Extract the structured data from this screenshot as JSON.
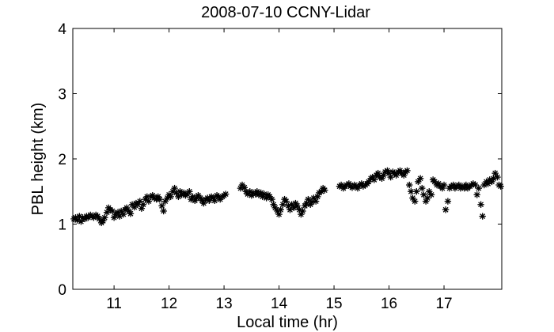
{
  "chart_data": {
    "type": "scatter",
    "title": "2008-07-10 CCNY-Lidar",
    "xlabel": "Local time (hr)",
    "ylabel": "PBL height (km)",
    "xlim": [
      10.25,
      18.05
    ],
    "ylim": [
      0,
      4
    ],
    "xticks": [
      11,
      12,
      13,
      14,
      15,
      16,
      17
    ],
    "yticks": [
      0,
      1,
      2,
      3,
      4
    ],
    "grid": false,
    "marker": "asterisk",
    "color": "#000000",
    "series": [
      {
        "points": [
          [
            10.27,
            1.08
          ],
          [
            10.3,
            1.1
          ],
          [
            10.33,
            1.06
          ],
          [
            10.37,
            1.12
          ],
          [
            10.4,
            1.04
          ],
          [
            10.43,
            1.1
          ],
          [
            10.47,
            1.08
          ],
          [
            10.5,
            1.12
          ],
          [
            10.53,
            1.1
          ],
          [
            10.57,
            1.14
          ],
          [
            10.6,
            1.12
          ],
          [
            10.63,
            1.1
          ],
          [
            10.67,
            1.14
          ],
          [
            10.7,
            1.12
          ],
          [
            10.73,
            1.08
          ],
          [
            10.77,
            1.02
          ],
          [
            10.8,
            1.05
          ],
          [
            10.83,
            1.1
          ],
          [
            10.87,
            1.18
          ],
          [
            10.9,
            1.25
          ],
          [
            10.93,
            1.22
          ],
          [
            10.97,
            1.2
          ],
          [
            11.0,
            1.1
          ],
          [
            11.03,
            1.15
          ],
          [
            11.07,
            1.18
          ],
          [
            11.1,
            1.12
          ],
          [
            11.13,
            1.2
          ],
          [
            11.17,
            1.15
          ],
          [
            11.2,
            1.22
          ],
          [
            11.23,
            1.25
          ],
          [
            11.27,
            1.2
          ],
          [
            11.3,
            1.16
          ],
          [
            11.33,
            1.3
          ],
          [
            11.37,
            1.26
          ],
          [
            11.4,
            1.32
          ],
          [
            11.43,
            1.3
          ],
          [
            11.47,
            1.35
          ],
          [
            11.5,
            1.24
          ],
          [
            11.53,
            1.3
          ],
          [
            11.57,
            1.38
          ],
          [
            11.6,
            1.42
          ],
          [
            11.63,
            1.35
          ],
          [
            11.67,
            1.42
          ],
          [
            11.7,
            1.44
          ],
          [
            11.73,
            1.4
          ],
          [
            11.77,
            1.38
          ],
          [
            11.8,
            1.42
          ],
          [
            11.83,
            1.38
          ],
          [
            11.87,
            1.28
          ],
          [
            11.9,
            1.2
          ],
          [
            11.93,
            1.35
          ],
          [
            11.97,
            1.4
          ],
          [
            12.0,
            1.45
          ],
          [
            12.03,
            1.42
          ],
          [
            12.07,
            1.5
          ],
          [
            12.1,
            1.55
          ],
          [
            12.13,
            1.48
          ],
          [
            12.17,
            1.42
          ],
          [
            12.2,
            1.5
          ],
          [
            12.23,
            1.45
          ],
          [
            12.27,
            1.48
          ],
          [
            12.3,
            1.44
          ],
          [
            12.33,
            1.46
          ],
          [
            12.37,
            1.5
          ],
          [
            12.4,
            1.38
          ],
          [
            12.43,
            1.42
          ],
          [
            12.47,
            1.36
          ],
          [
            12.5,
            1.4
          ],
          [
            12.53,
            1.44
          ],
          [
            12.57,
            1.4
          ],
          [
            12.6,
            1.36
          ],
          [
            12.63,
            1.32
          ],
          [
            12.67,
            1.38
          ],
          [
            12.7,
            1.4
          ],
          [
            12.73,
            1.36
          ],
          [
            12.77,
            1.42
          ],
          [
            12.8,
            1.4
          ],
          [
            12.83,
            1.36
          ],
          [
            12.87,
            1.44
          ],
          [
            12.9,
            1.42
          ],
          [
            12.93,
            1.38
          ],
          [
            12.97,
            1.42
          ],
          [
            13.0,
            1.44
          ],
          [
            13.03,
            1.46
          ],
          [
            13.3,
            1.55
          ],
          [
            13.33,
            1.6
          ],
          [
            13.37,
            1.56
          ],
          [
            13.4,
            1.5
          ],
          [
            13.43,
            1.46
          ],
          [
            13.47,
            1.5
          ],
          [
            13.5,
            1.44
          ],
          [
            13.53,
            1.48
          ],
          [
            13.57,
            1.46
          ],
          [
            13.6,
            1.5
          ],
          [
            13.63,
            1.45
          ],
          [
            13.67,
            1.48
          ],
          [
            13.7,
            1.42
          ],
          [
            13.73,
            1.46
          ],
          [
            13.77,
            1.4
          ],
          [
            13.8,
            1.45
          ],
          [
            13.83,
            1.42
          ],
          [
            13.87,
            1.38
          ],
          [
            13.9,
            1.3
          ],
          [
            13.93,
            1.25
          ],
          [
            13.97,
            1.2
          ],
          [
            14.0,
            1.15
          ],
          [
            14.03,
            1.22
          ],
          [
            14.07,
            1.3
          ],
          [
            14.1,
            1.38
          ],
          [
            14.13,
            1.35
          ],
          [
            14.17,
            1.28
          ],
          [
            14.2,
            1.22
          ],
          [
            14.23,
            1.3
          ],
          [
            14.27,
            1.25
          ],
          [
            14.3,
            1.32
          ],
          [
            14.33,
            1.28
          ],
          [
            14.37,
            1.22
          ],
          [
            14.4,
            1.15
          ],
          [
            14.43,
            1.2
          ],
          [
            14.47,
            1.28
          ],
          [
            14.5,
            1.32
          ],
          [
            14.53,
            1.38
          ],
          [
            14.57,
            1.3
          ],
          [
            14.6,
            1.34
          ],
          [
            14.63,
            1.4
          ],
          [
            14.67,
            1.35
          ],
          [
            14.7,
            1.42
          ],
          [
            14.73,
            1.48
          ],
          [
            14.77,
            1.5
          ],
          [
            14.8,
            1.55
          ],
          [
            14.83,
            1.52
          ],
          [
            15.1,
            1.58
          ],
          [
            15.13,
            1.6
          ],
          [
            15.17,
            1.55
          ],
          [
            15.2,
            1.58
          ],
          [
            15.23,
            1.6
          ],
          [
            15.27,
            1.62
          ],
          [
            15.3,
            1.58
          ],
          [
            15.33,
            1.56
          ],
          [
            15.37,
            1.6
          ],
          [
            15.4,
            1.58
          ],
          [
            15.43,
            1.55
          ],
          [
            15.47,
            1.6
          ],
          [
            15.5,
            1.62
          ],
          [
            15.53,
            1.58
          ],
          [
            15.57,
            1.6
          ],
          [
            15.6,
            1.62
          ],
          [
            15.63,
            1.65
          ],
          [
            15.67,
            1.7
          ],
          [
            15.7,
            1.72
          ],
          [
            15.73,
            1.68
          ],
          [
            15.77,
            1.75
          ],
          [
            15.8,
            1.78
          ],
          [
            15.83,
            1.72
          ],
          [
            15.87,
            1.7
          ],
          [
            15.9,
            1.75
          ],
          [
            15.93,
            1.8
          ],
          [
            15.97,
            1.82
          ],
          [
            16.0,
            1.78
          ],
          [
            16.03,
            1.72
          ],
          [
            16.07,
            1.8
          ],
          [
            16.1,
            1.78
          ],
          [
            16.13,
            1.75
          ],
          [
            16.17,
            1.8
          ],
          [
            16.2,
            1.82
          ],
          [
            16.23,
            1.78
          ],
          [
            16.27,
            1.75
          ],
          [
            16.3,
            1.8
          ],
          [
            16.33,
            1.82
          ],
          [
            16.37,
            1.6
          ],
          [
            16.4,
            1.5
          ],
          [
            16.43,
            1.4
          ],
          [
            16.47,
            1.35
          ],
          [
            16.5,
            1.5
          ],
          [
            16.53,
            1.65
          ],
          [
            16.57,
            1.7
          ],
          [
            16.6,
            1.55
          ],
          [
            16.63,
            1.45
          ],
          [
            16.67,
            1.35
          ],
          [
            16.7,
            1.4
          ],
          [
            16.73,
            1.5
          ],
          [
            16.77,
            1.45
          ],
          [
            16.8,
            1.68
          ],
          [
            16.83,
            1.65
          ],
          [
            16.87,
            1.6
          ],
          [
            16.9,
            1.62
          ],
          [
            16.93,
            1.58
          ],
          [
            16.97,
            1.55
          ],
          [
            17.0,
            1.6
          ],
          [
            17.03,
            1.22
          ],
          [
            17.07,
            1.35
          ],
          [
            17.1,
            1.55
          ],
          [
            17.13,
            1.58
          ],
          [
            17.17,
            1.6
          ],
          [
            17.2,
            1.55
          ],
          [
            17.23,
            1.58
          ],
          [
            17.27,
            1.6
          ],
          [
            17.3,
            1.55
          ],
          [
            17.33,
            1.58
          ],
          [
            17.37,
            1.55
          ],
          [
            17.4,
            1.6
          ],
          [
            17.43,
            1.55
          ],
          [
            17.47,
            1.58
          ],
          [
            17.5,
            1.6
          ],
          [
            17.53,
            1.62
          ],
          [
            17.57,
            1.6
          ],
          [
            17.6,
            1.45
          ],
          [
            17.63,
            1.55
          ],
          [
            17.67,
            1.3
          ],
          [
            17.7,
            1.12
          ],
          [
            17.73,
            1.6
          ],
          [
            17.77,
            1.65
          ],
          [
            17.8,
            1.62
          ],
          [
            17.83,
            1.68
          ],
          [
            17.87,
            1.65
          ],
          [
            17.9,
            1.7
          ],
          [
            17.93,
            1.78
          ],
          [
            17.97,
            1.72
          ],
          [
            18.0,
            1.6
          ],
          [
            18.03,
            1.58
          ]
        ]
      }
    ]
  }
}
